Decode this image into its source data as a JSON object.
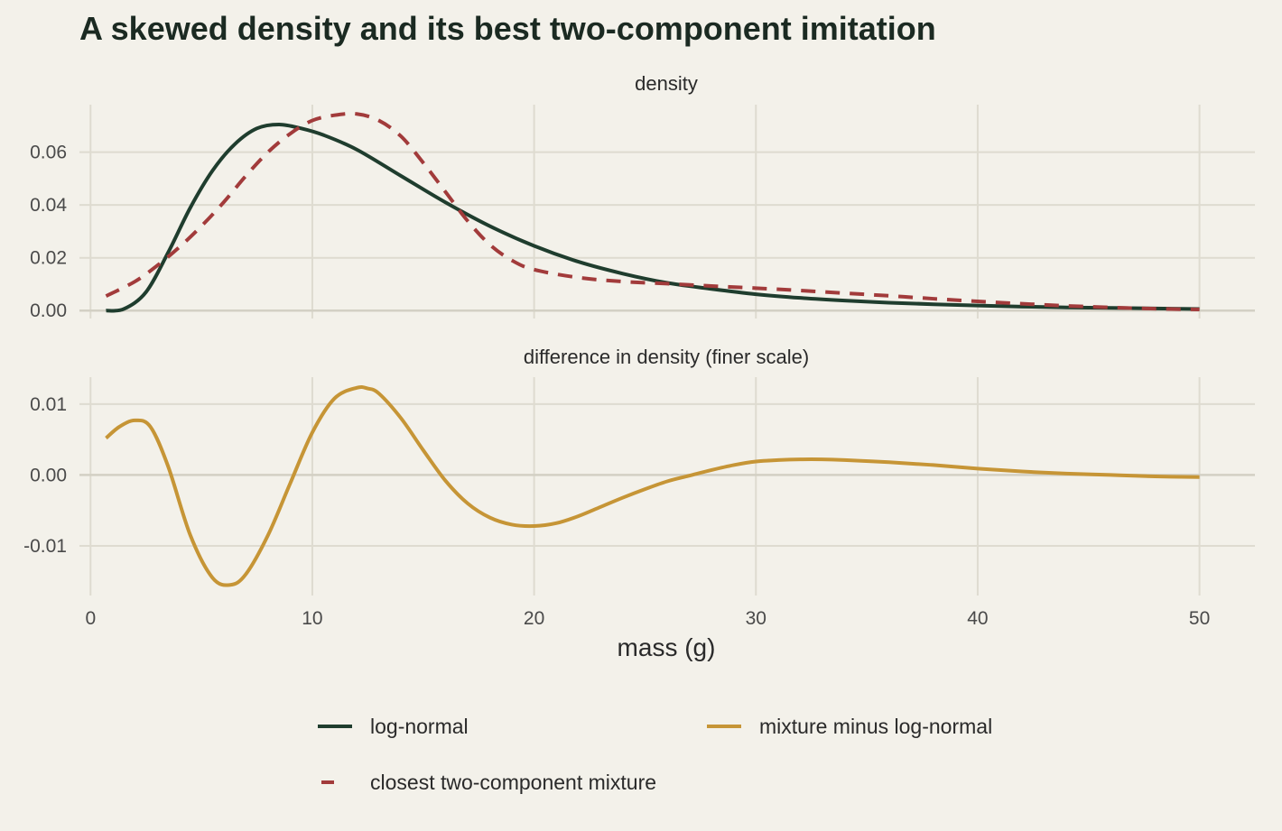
{
  "chart_data": {
    "type": "line",
    "title": "A skewed density and its best two-component imitation",
    "xlabel": "mass (g)",
    "x_ticks": [
      "0",
      "10",
      "20",
      "30",
      "40",
      "50"
    ],
    "xlim": [
      -0.5,
      52.5
    ],
    "colors": {
      "log_normal": "#1f3d2e",
      "mixture": "#a23b3b",
      "difference": "#c69536",
      "background": "#f3f1ea"
    },
    "panels": [
      {
        "strip_label": "density",
        "ylim": [
          -0.003,
          0.078
        ],
        "y_ticks": [
          {
            "value": 0.0,
            "label": "0.00"
          },
          {
            "value": 0.02,
            "label": "0.02"
          },
          {
            "value": 0.04,
            "label": "0.04"
          },
          {
            "value": 0.06,
            "label": "0.06"
          }
        ],
        "series": [
          {
            "key": "log_normal",
            "style": "solid",
            "x": [
              0.7,
              1.5,
              2.5,
              3.5,
              4.5,
              5.5,
              6.5,
              7.5,
              8.5,
              9.5,
              10.5,
              12,
              14,
              16,
              18,
              20,
              22,
              24,
              26,
              28,
              30,
              32,
              34,
              36,
              38,
              40,
              42,
              44,
              46,
              48,
              50
            ],
            "y": [
              0.0,
              0.0006,
              0.007,
              0.022,
              0.039,
              0.053,
              0.063,
              0.069,
              0.0705,
              0.069,
              0.0665,
              0.061,
              0.051,
              0.041,
              0.032,
              0.0245,
              0.0185,
              0.014,
              0.0105,
              0.0082,
              0.0062,
              0.0048,
              0.0038,
              0.003,
              0.0024,
              0.0019,
              0.0015,
              0.0012,
              0.001,
              0.0008,
              0.0006
            ]
          },
          {
            "key": "mixture",
            "style": "dashed",
            "x": [
              0.7,
              2,
              3,
              4,
              5,
              6,
              7,
              8,
              9,
              10,
              11,
              12,
              13,
              14,
              15,
              16,
              17,
              18,
              19,
              20,
              22,
              24,
              26,
              28,
              30,
              32,
              34,
              36,
              38,
              40,
              42,
              44,
              46,
              48,
              50
            ],
            "y": [
              0.0055,
              0.011,
              0.017,
              0.024,
              0.032,
              0.041,
              0.051,
              0.06,
              0.067,
              0.072,
              0.074,
              0.0745,
              0.072,
              0.066,
              0.056,
              0.045,
              0.034,
              0.025,
              0.019,
              0.0155,
              0.0125,
              0.011,
              0.0102,
              0.0093,
              0.0085,
              0.0076,
              0.0066,
              0.0056,
              0.0045,
              0.0035,
              0.0026,
              0.0018,
              0.0012,
              0.0007,
              0.0004
            ]
          }
        ]
      },
      {
        "strip_label": "difference in density (finer scale)",
        "ylim": [
          -0.017,
          0.0138
        ],
        "y_ticks": [
          {
            "value": -0.01,
            "label": "-0.01"
          },
          {
            "value": 0.0,
            "label": "0.00"
          },
          {
            "value": 0.01,
            "label": "0.01"
          }
        ],
        "series": [
          {
            "key": "difference",
            "style": "solid",
            "x": [
              0.7,
              1.3,
              2.0,
              2.7,
              3.5,
              4.5,
              5.5,
              6.3,
              7.0,
              8.0,
              9.0,
              10.0,
              11.0,
              12.0,
              12.5,
              13.0,
              14.0,
              15.0,
              16.0,
              17.0,
              18.0,
              19.0,
              20.0,
              21.0,
              22.0,
              23.0,
              24.0,
              25.0,
              26.0,
              27.0,
              28.0,
              29.0,
              30.0,
              31.0,
              32.0,
              33.0,
              34.0,
              36.0,
              38.0,
              40.0,
              42.0,
              44.0,
              46.0,
              48.0,
              50.0
            ],
            "y": [
              0.0052,
              0.0068,
              0.0077,
              0.0068,
              0.0012,
              -0.0085,
              -0.0145,
              -0.0155,
              -0.014,
              -0.0085,
              -0.0012,
              0.006,
              0.0108,
              0.0123,
              0.0122,
              0.0115,
              0.008,
              0.0035,
              -0.0008,
              -0.004,
              -0.006,
              -0.007,
              -0.0072,
              -0.0068,
              -0.0058,
              -0.0045,
              -0.0032,
              -0.002,
              -0.0009,
              -0.0001,
              0.0007,
              0.0014,
              0.0019,
              0.0021,
              0.0022,
              0.0022,
              0.0021,
              0.0018,
              0.0014,
              0.0009,
              0.0005,
              0.0002,
              0.0,
              -0.0002,
              -0.0003
            ]
          }
        ]
      }
    ],
    "legend": {
      "position": "bottom",
      "items": [
        {
          "key": "log_normal",
          "label": "log-normal",
          "style": "solid"
        },
        {
          "key": "difference",
          "label": "mixture minus log-normal",
          "style": "solid"
        },
        {
          "key": "mixture",
          "label": "closest two-component mixture",
          "style": "dashed"
        }
      ]
    }
  }
}
